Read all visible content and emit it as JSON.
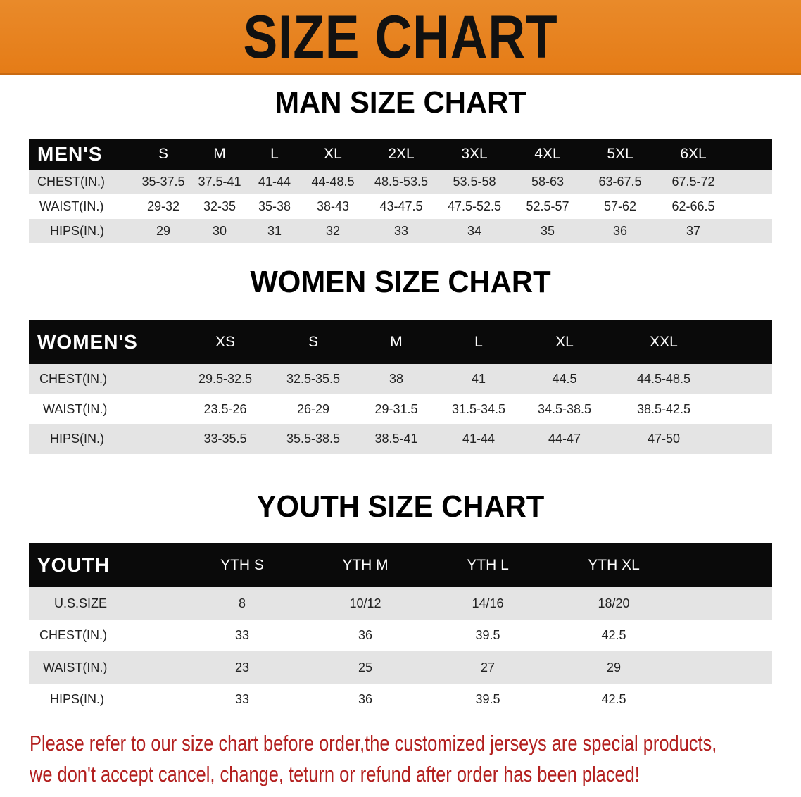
{
  "banner": {
    "title": "SIZE CHART"
  },
  "colors": {
    "banner": "#e57c17",
    "header_row": "#0a0a0a",
    "stripe": "#e4e4e4",
    "note": "#b3201f"
  },
  "men": {
    "title": "MAN SIZE CHART",
    "header": [
      "MEN'S",
      "S",
      "M",
      "L",
      "XL",
      "2XL",
      "3XL",
      "4XL",
      "5XL",
      "6XL"
    ],
    "rows": [
      [
        "CHEST(IN.)",
        "35-37.5",
        "37.5-41",
        "41-44",
        "44-48.5",
        "48.5-53.5",
        "53.5-58",
        "58-63",
        "63-67.5",
        "67.5-72"
      ],
      [
        "WAIST(IN.)",
        "29-32",
        "32-35",
        "35-38",
        "38-43",
        "43-47.5",
        "47.5-52.5",
        "52.5-57",
        "57-62",
        "62-66.5"
      ],
      [
        "HIPS(IN.)",
        "29",
        "30",
        "31",
        "32",
        "33",
        "34",
        "35",
        "36",
        "37"
      ]
    ]
  },
  "women": {
    "title": "WOMEN SIZE CHART",
    "header": [
      "WOMEN'S",
      "XS",
      "S",
      "M",
      "L",
      "XL",
      "XXL"
    ],
    "rows": [
      [
        "CHEST(IN.)",
        "29.5-32.5",
        "32.5-35.5",
        "38",
        "41",
        "44.5",
        "44.5-48.5"
      ],
      [
        "WAIST(IN.)",
        "23.5-26",
        "26-29",
        "29-31.5",
        "31.5-34.5",
        "34.5-38.5",
        "38.5-42.5"
      ],
      [
        "HIPS(IN.)",
        "33-35.5",
        "35.5-38.5",
        "38.5-41",
        "41-44",
        "44-47",
        "47-50"
      ]
    ]
  },
  "youth": {
    "title": "YOUTH SIZE CHART",
    "header": [
      "YOUTH",
      "YTH S",
      "YTH M",
      "YTH L",
      "YTH XL"
    ],
    "rows": [
      [
        "U.S.SIZE",
        "8",
        "10/12",
        "14/16",
        "18/20"
      ],
      [
        "CHEST(IN.)",
        "33",
        "36",
        "39.5",
        "42.5"
      ],
      [
        "WAIST(IN.)",
        "23",
        "25",
        "27",
        "29"
      ],
      [
        "HIPS(IN.)",
        "33",
        "36",
        "39.5",
        "42.5"
      ]
    ]
  },
  "note": {
    "line1": "Please refer to our size chart before order,the customized jerseys are special products,",
    "line2": "we don't accept cancel, change, teturn or refund after order has been placed!"
  }
}
